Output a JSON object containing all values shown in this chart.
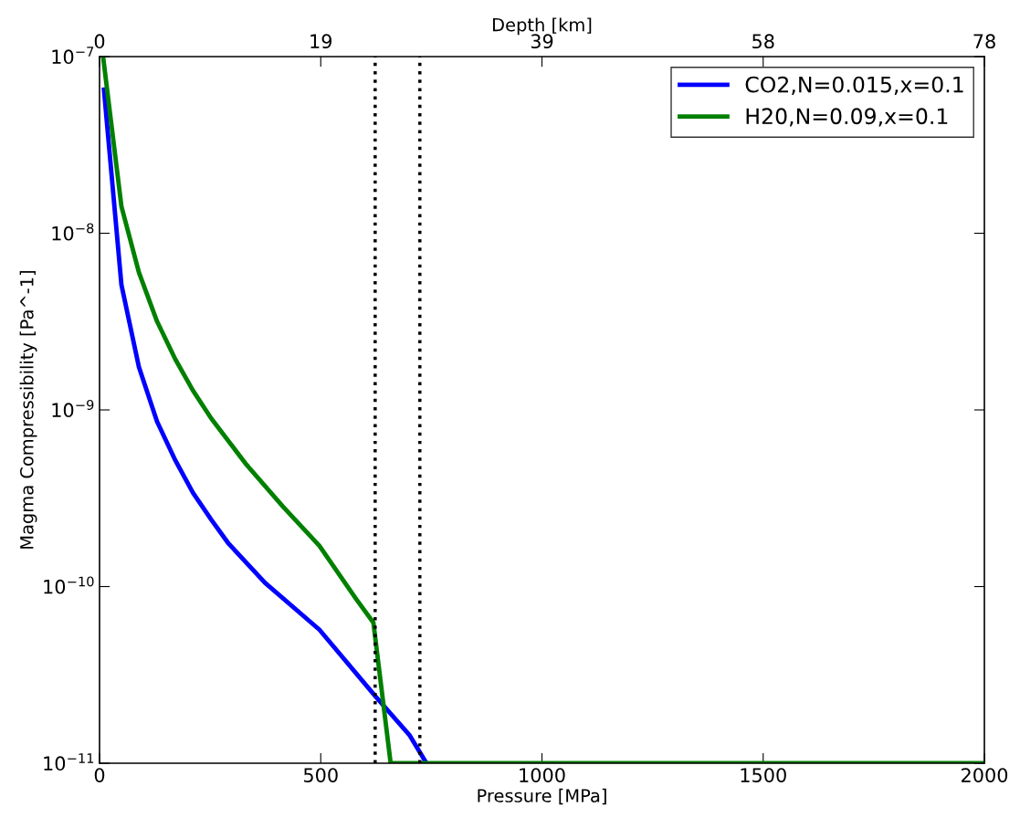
{
  "chart_data": {
    "type": "line",
    "xlabel": "Pressure [MPa]",
    "ylabel": "Magma Compressibility [Pa^-1]",
    "x2label": "Depth [km]",
    "log": "y",
    "xlim": [
      0,
      2000
    ],
    "xticks": [
      0,
      500,
      1000,
      1500,
      2000
    ],
    "x2lim": [
      0,
      78
    ],
    "x2ticks": [
      0,
      {
        "value": 19.5,
        "label": "19"
      },
      39,
      {
        "value": 58.5,
        "label": "58"
      },
      78
    ],
    "ylim": [
      1e-11,
      1e-07
    ],
    "yticks": [
      {
        "value": 1e-11,
        "label": "10$^{−11}$"
      },
      {
        "value": 1e-10,
        "label": "10$^{−10}$"
      },
      {
        "value": 1e-09,
        "label": "10$^{−9}$"
      },
      {
        "value": 1e-08,
        "label": "10$^{−8}$"
      },
      {
        "value": 1e-07,
        "label": "10$^{−7}$"
      }
    ],
    "grid": false,
    "legend": "top right",
    "line_style": "solid",
    "marker": "none",
    "series": [
      {
        "name": "CO2,N=0.015,x=0.1",
        "color": "#0000ff",
        "x": [
          10,
          49.5,
          89,
          130,
          171,
          211,
          252,
          291,
          374,
          497,
          623,
          700,
          739
        ],
        "values": [
          6.5e-08,
          5.1e-09,
          1.75e-09,
          8.6e-10,
          5.2e-10,
          3.4e-10,
          2.4e-10,
          1.76e-10,
          1.05e-10,
          5.7e-11,
          2.4e-11,
          1.45e-11,
          1e-11
        ]
      },
      {
        "name": "H20,N=0.09,x=0.1",
        "color": "#008000",
        "x": [
          8,
          49.5,
          89,
          130,
          171,
          211,
          252,
          332,
          415,
          497,
          580,
          619,
          658,
          2000
        ],
        "values": [
          1e-07,
          1.42e-08,
          6e-09,
          3.17e-09,
          1.94e-09,
          1.29e-09,
          8.98e-10,
          4.9e-10,
          2.83e-10,
          1.7e-10,
          8.5e-11,
          6.25e-11,
          1e-11,
          1e-11
        ]
      }
    ],
    "ref_lines": [
      {
        "axis": "x",
        "value": 623,
        "color": "#000000",
        "line_style": "dotted"
      },
      {
        "axis": "x",
        "value": 724,
        "color": "#000000",
        "line_style": "dotted"
      }
    ]
  }
}
